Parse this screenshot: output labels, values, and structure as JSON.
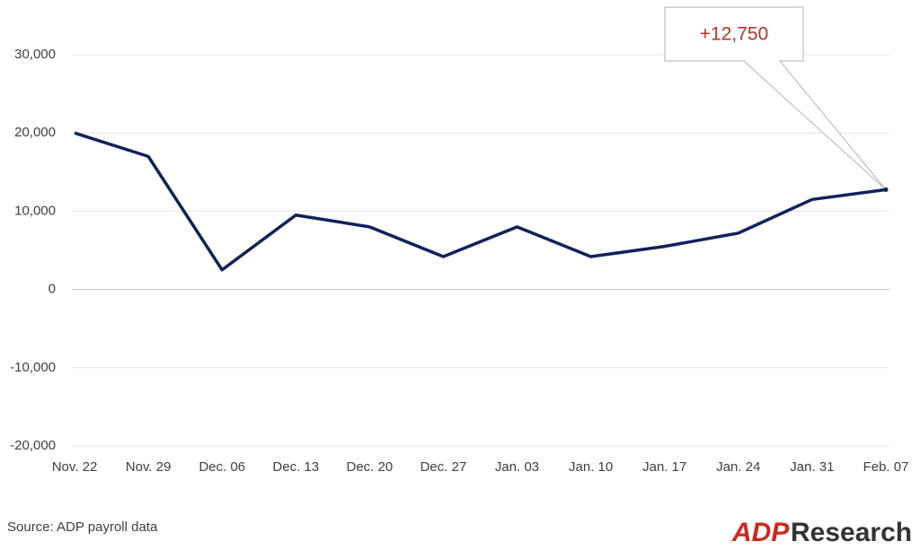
{
  "chart_data": {
    "type": "line",
    "categories": [
      "Nov. 22",
      "Nov. 29",
      "Dec. 06",
      "Dec. 13",
      "Dec. 20",
      "Dec. 27",
      "Jan. 03",
      "Jan. 10",
      "Jan. 17",
      "Jan. 24",
      "Jan. 31",
      "Feb. 07"
    ],
    "series": [
      {
        "color": "#12215a",
        "values": [
          20000,
          17000,
          2500,
          9500,
          8000,
          4200,
          8000,
          4200,
          5500,
          7200,
          11500,
          12750
        ],
        "value_labels": [
          null,
          null,
          null,
          null,
          null,
          null,
          null,
          null,
          null,
          null,
          null,
          "+12,750"
        ]
      }
    ],
    "ylim": [
      -20000,
      30000
    ],
    "yticks": [
      {
        "value": -20000,
        "label": "-20,000"
      },
      {
        "value": -10000,
        "label": "-10,000"
      },
      0,
      {
        "value": 10000,
        "label": "10,000"
      },
      {
        "value": 20000,
        "label": "20,000"
      },
      {
        "value": 30000,
        "label": "30,000"
      }
    ],
    "grid": true,
    "source": "Source: ADP payroll data",
    "logo": {
      "mark": "ADP",
      "text": "Research"
    }
  }
}
